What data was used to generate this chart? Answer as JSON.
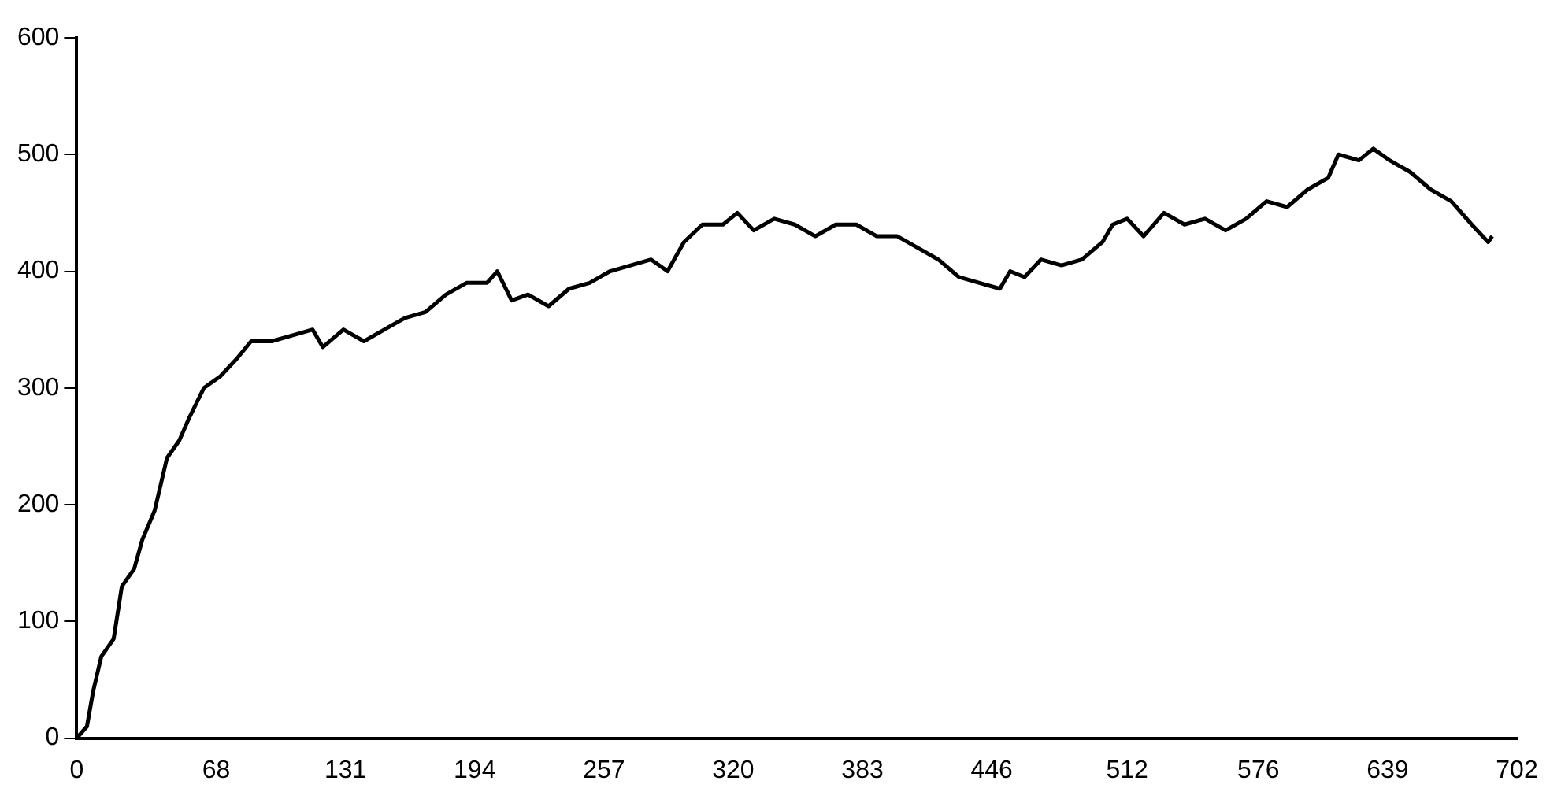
{
  "chart_data": {
    "type": "line",
    "color": "#000000",
    "x": [
      0,
      5,
      8,
      12,
      18,
      22,
      28,
      32,
      38,
      44,
      50,
      55,
      62,
      70,
      78,
      85,
      95,
      105,
      115,
      120,
      130,
      140,
      150,
      160,
      170,
      180,
      190,
      200,
      205,
      212,
      220,
      230,
      240,
      250,
      260,
      270,
      280,
      288,
      296,
      305,
      315,
      322,
      330,
      340,
      350,
      360,
      370,
      380,
      390,
      400,
      410,
      420,
      430,
      440,
      450,
      455,
      462,
      470,
      480,
      490,
      500,
      505,
      512,
      520,
      530,
      540,
      550,
      560,
      570,
      580,
      590,
      600,
      610,
      615,
      625,
      632,
      640,
      650,
      660,
      670,
      680,
      688,
      690
    ],
    "values": [
      0,
      10,
      40,
      70,
      85,
      130,
      145,
      170,
      195,
      240,
      255,
      275,
      300,
      310,
      325,
      340,
      340,
      345,
      350,
      335,
      350,
      340,
      350,
      360,
      365,
      380,
      390,
      390,
      400,
      375,
      380,
      370,
      385,
      390,
      400,
      405,
      410,
      400,
      425,
      440,
      440,
      450,
      435,
      445,
      440,
      430,
      440,
      440,
      430,
      430,
      420,
      410,
      395,
      390,
      385,
      400,
      395,
      410,
      405,
      410,
      425,
      440,
      445,
      430,
      450,
      440,
      445,
      435,
      445,
      460,
      455,
      470,
      480,
      500,
      495,
      505,
      495,
      485,
      470,
      460,
      440,
      425,
      430
    ],
    "xlim": [
      0,
      702
    ],
    "xticks": [
      0,
      68,
      131,
      194,
      257,
      320,
      383,
      446,
      512,
      576,
      639,
      702
    ],
    "ylim": [
      0,
      600
    ],
    "yticks": [
      0,
      100,
      200,
      300,
      400,
      500,
      600
    ],
    "grid": false,
    "legend": false,
    "marker": "none",
    "line_style": "solid"
  }
}
